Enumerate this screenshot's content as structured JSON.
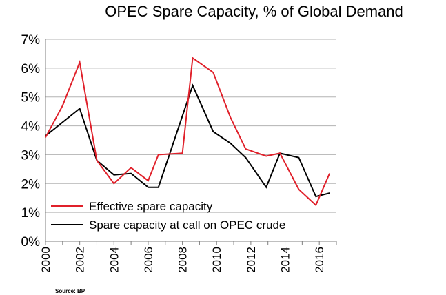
{
  "chart_data": {
    "type": "line",
    "title": "OPEC Spare Capacity, % of Global Demand",
    "xlabel": "",
    "ylabel": "",
    "ylim": [
      0,
      7
    ],
    "xlim": [
      2000,
      2017
    ],
    "y_ticks": [
      "0%",
      "1%",
      "2%",
      "3%",
      "4%",
      "5%",
      "6%",
      "7%"
    ],
    "x_ticks": [
      "2000",
      "2002",
      "2004",
      "2006",
      "2008",
      "2010",
      "2012",
      "2014",
      "2016"
    ],
    "legend_position": "bottom-left",
    "grid": true,
    "series": [
      {
        "name": "Effective spare capacity",
        "color": "#e0202a",
        "x": [
          2000,
          2001,
          2002,
          2003,
          2004,
          2005,
          2006,
          2006.6,
          2008,
          2008.6,
          2009.8,
          2010.8,
          2011.7,
          2012.9,
          2013.7,
          2014.8,
          2015.8,
          2016.6
        ],
        "values": [
          3.6,
          4.7,
          6.2,
          2.8,
          2.0,
          2.55,
          2.1,
          3.0,
          3.05,
          6.35,
          5.85,
          4.3,
          3.2,
          2.95,
          3.05,
          1.8,
          1.25,
          2.35
        ]
      },
      {
        "name": "Spare capacity at call on OPEC crude",
        "color": "#000000",
        "x": [
          2000,
          2002,
          2003,
          2004,
          2005,
          2006,
          2006.6,
          2008.6,
          2009.8,
          2010.8,
          2011.7,
          2012.9,
          2013.7,
          2014.8,
          2015.8,
          2016.6
        ],
        "values": [
          3.65,
          4.6,
          2.8,
          2.3,
          2.35,
          1.87,
          1.87,
          5.4,
          3.8,
          3.4,
          2.9,
          1.87,
          3.05,
          2.9,
          1.55,
          1.67
        ]
      }
    ]
  },
  "source": "Source: BP"
}
